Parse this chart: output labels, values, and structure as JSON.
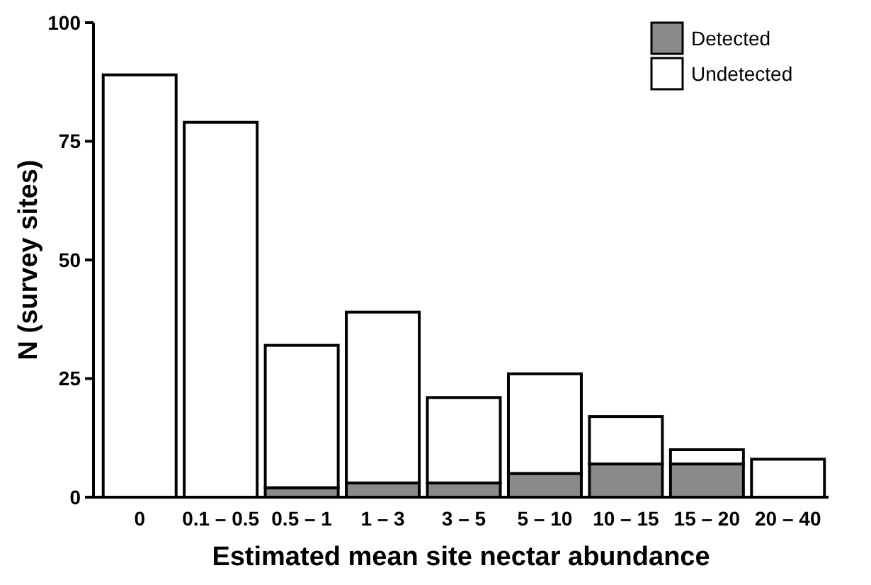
{
  "chart_data": {
    "type": "bar",
    "stacked": true,
    "xlabel": "Estimated mean site nectar abundance",
    "ylabel": "N (survey sites)",
    "categories": [
      "0",
      "0.1 – 0.5",
      "0.5 – 1",
      "1 – 3",
      "3 – 5",
      "5 – 10",
      "10 – 15",
      "15 – 20",
      "20 – 40"
    ],
    "series": [
      {
        "name": "Detected",
        "color": "#8a8a8a",
        "values": [
          0,
          0,
          2,
          3,
          3,
          5,
          7,
          7,
          0
        ]
      },
      {
        "name": "Undetected",
        "color": "#ffffff",
        "values": [
          89,
          79,
          30,
          36,
          18,
          21,
          10,
          3,
          8
        ]
      }
    ],
    "ylim": [
      0,
      100
    ],
    "yticks": [
      0,
      25,
      50,
      75,
      100
    ],
    "grid": false,
    "legend": "top right"
  }
}
